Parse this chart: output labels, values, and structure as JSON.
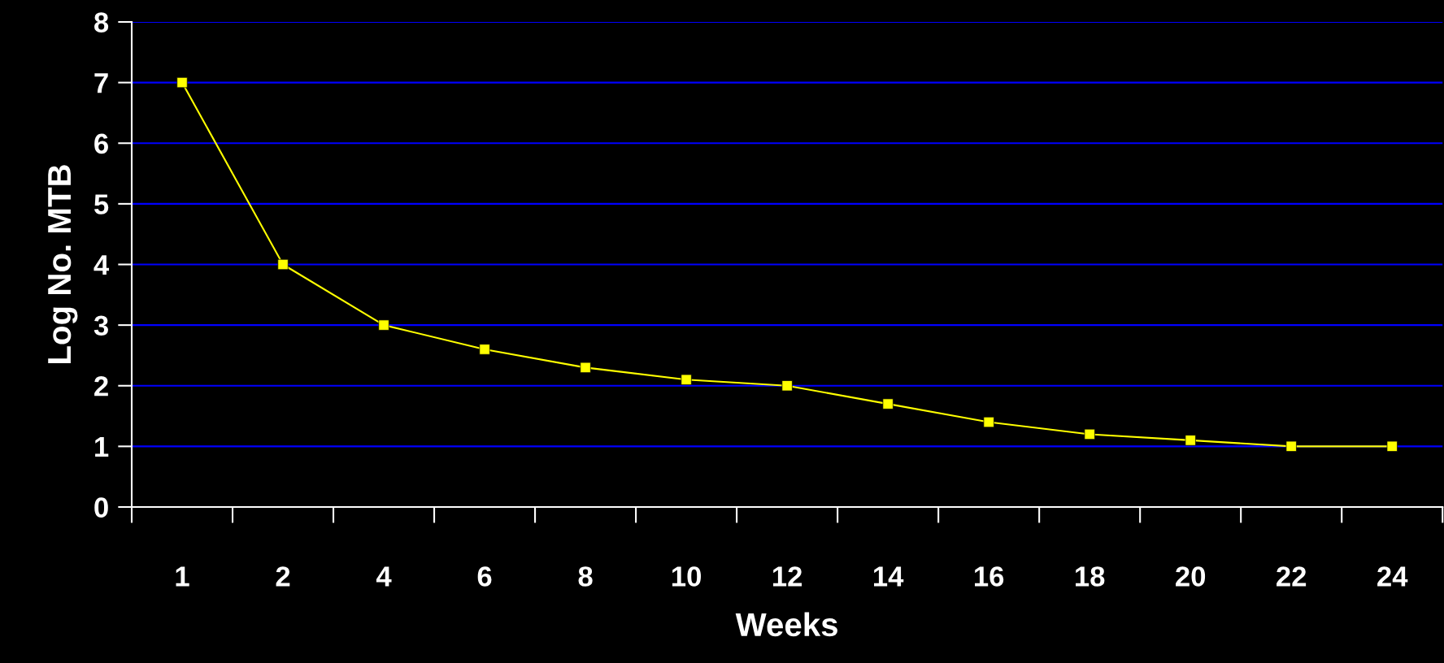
{
  "chart_data": {
    "type": "line",
    "xlabel": "Weeks",
    "ylabel": "Log No. MTB",
    "categories": [
      "1",
      "2",
      "4",
      "6",
      "8",
      "10",
      "12",
      "14",
      "16",
      "18",
      "20",
      "22",
      "24"
    ],
    "series": [
      {
        "color": "#ffff00",
        "values": [
          7,
          4,
          3,
          2.6,
          2.3,
          2.1,
          2,
          1.7,
          1.4,
          1.2,
          1.1,
          1,
          1
        ]
      }
    ],
    "ylim": [
      0,
      8
    ],
    "yticks": [
      0,
      1,
      2,
      3,
      4,
      5,
      6,
      7,
      8
    ],
    "grid": "y",
    "marker": "square",
    "line_style": "solid"
  }
}
